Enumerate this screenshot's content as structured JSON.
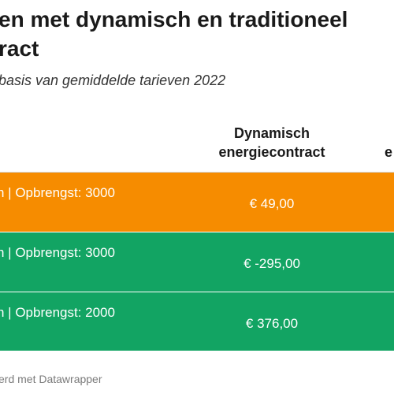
{
  "title": {
    "line1": "en met dynamisch en traditioneel",
    "line2": "ract"
  },
  "subtitle": "basis van gemiddelde tarieven 2022",
  "columns": {
    "dynamisch": "Dynamisch energiecontract",
    "partial": "e"
  },
  "rows": [
    {
      "label": "n | Opbrengst: 3000",
      "dynamisch": "€ 49,00",
      "color": "#f68c00"
    },
    {
      "label": "n | Opbrengst: 3000",
      "dynamisch": "€ -295,00",
      "color": "#12a463"
    },
    {
      "label": "n | Opbrengst: 2000",
      "dynamisch": "€ 376,00",
      "color": "#12a463"
    }
  ],
  "footer": "erd met Datawrapper"
}
